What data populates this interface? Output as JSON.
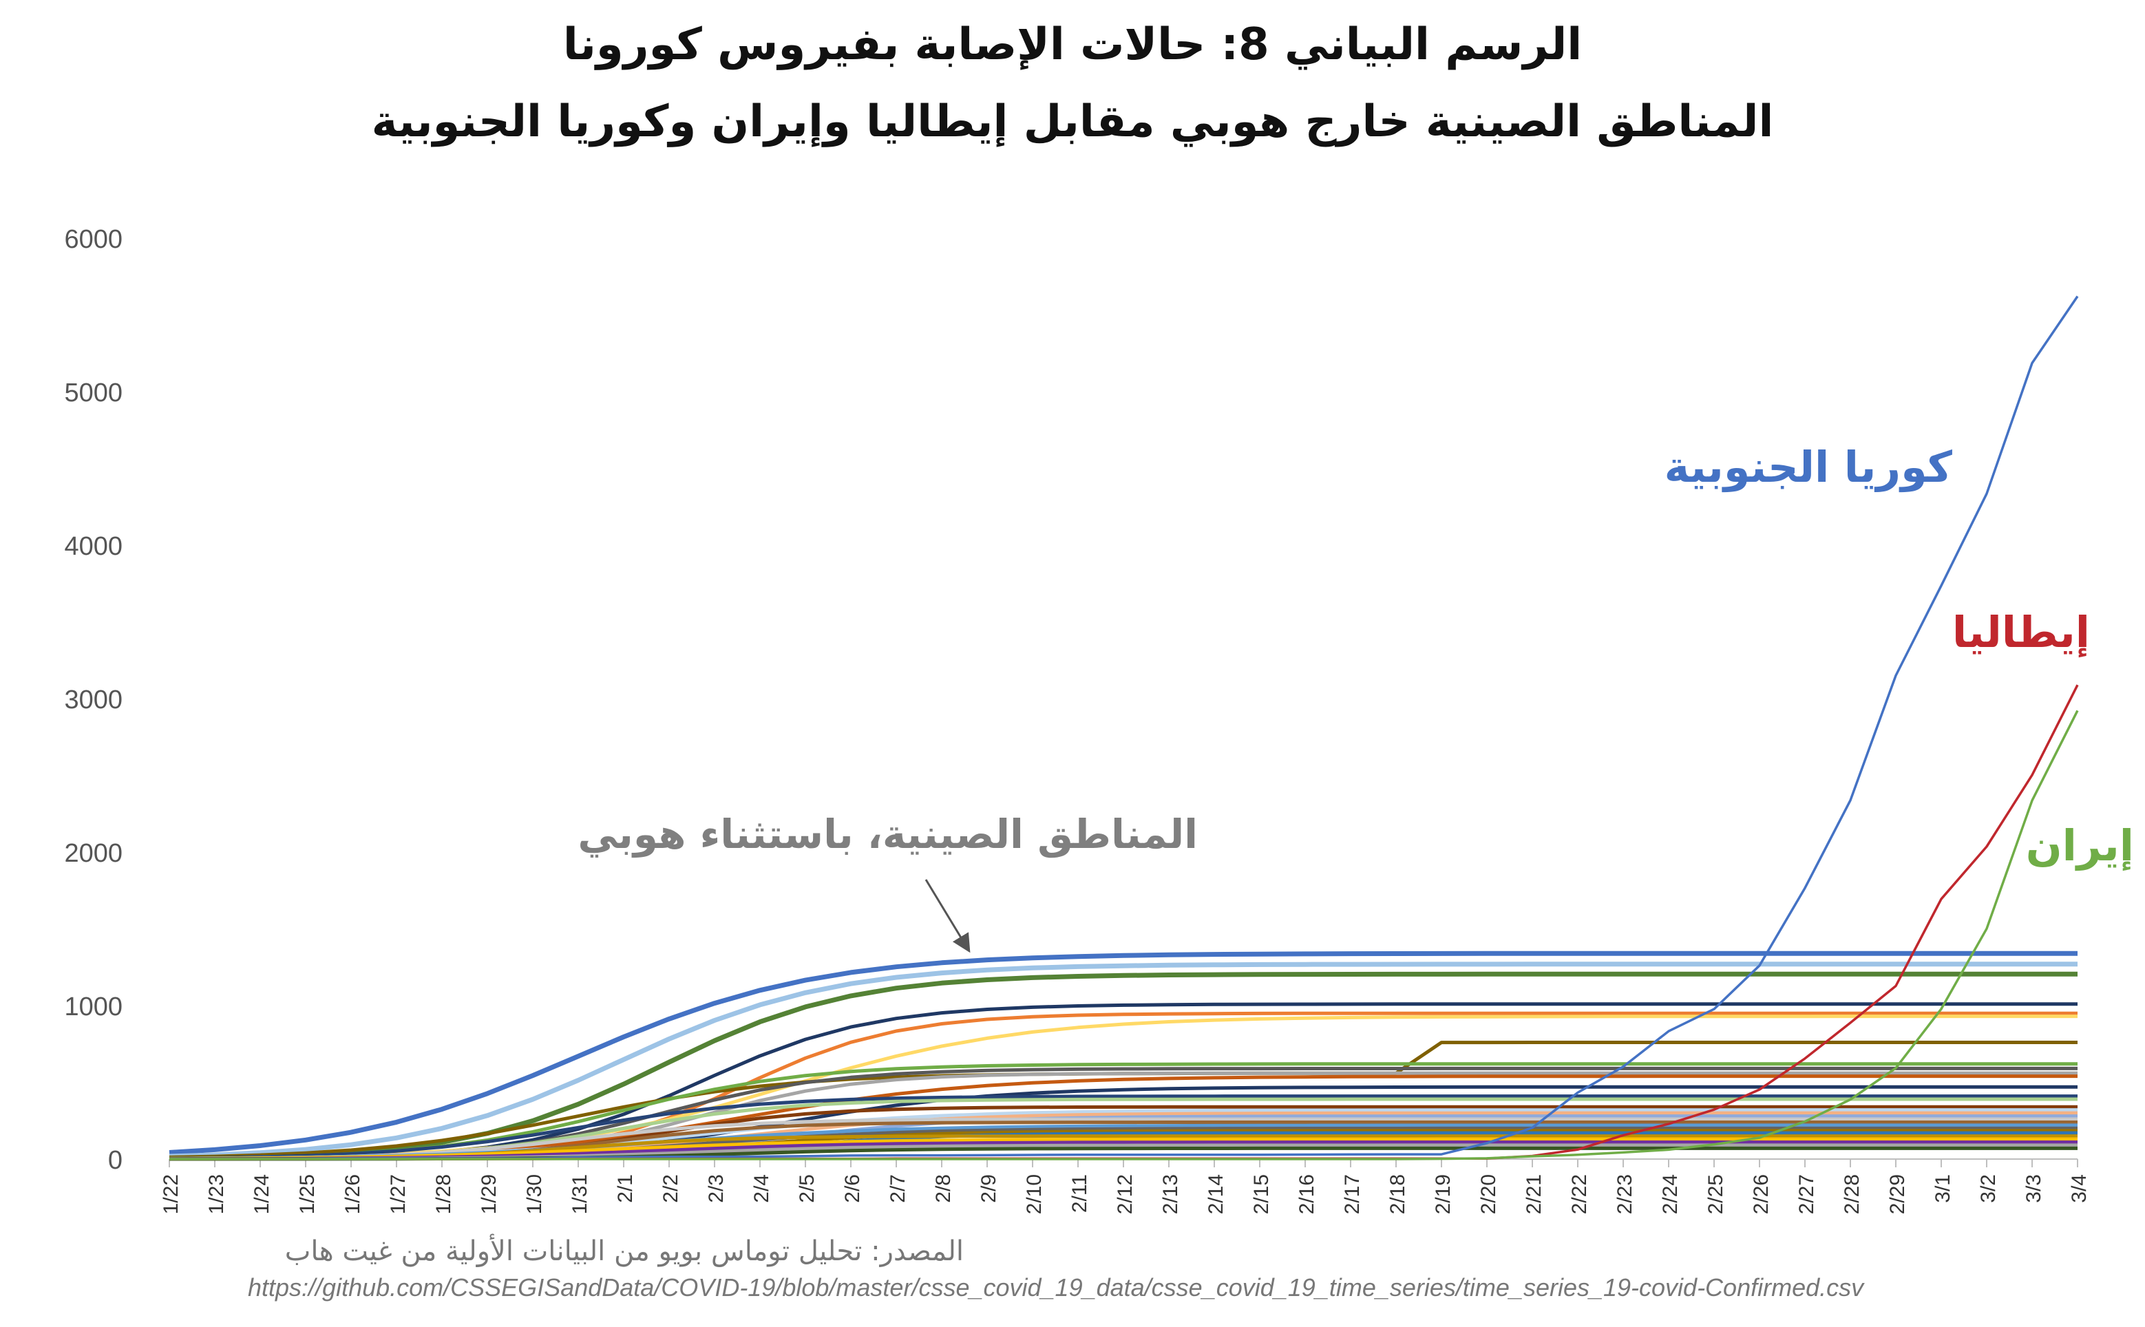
{
  "chart_data": {
    "type": "line",
    "title": "الرسم البياني 8: حالات الإصابة بفيروس كورونا",
    "subtitle": "المناطق الصينية خارج هوبي مقابل إيطاليا وإيران وكوريا الجنوبية",
    "xlabel": "",
    "ylabel": "",
    "ylim": [
      0,
      6000
    ],
    "yticks": [
      "0",
      "1000",
      "2000",
      "3000",
      "4000",
      "5000",
      "6000"
    ],
    "categories": [
      "1/22",
      "1/23",
      "1/24",
      "1/25",
      "1/26",
      "1/27",
      "1/28",
      "1/29",
      "1/30",
      "1/31",
      "2/1",
      "2/2",
      "2/3",
      "2/4",
      "2/5",
      "2/6",
      "2/7",
      "2/8",
      "2/9",
      "2/10",
      "2/11",
      "2/12",
      "2/13",
      "2/14",
      "2/15",
      "2/16",
      "2/17",
      "2/18",
      "2/19",
      "2/20",
      "2/21",
      "2/22",
      "2/23",
      "2/24",
      "2/25",
      "2/26",
      "2/27",
      "2/28",
      "2/29",
      "3/1",
      "3/2",
      "3/3",
      "3/4"
    ],
    "series": [
      {
        "name": "كوريا الجنوبية",
        "color": "#4472c4",
        "values": [
          1,
          1,
          2,
          2,
          3,
          4,
          4,
          4,
          4,
          11,
          12,
          15,
          15,
          16,
          19,
          23,
          24,
          24,
          25,
          27,
          28,
          28,
          28,
          28,
          28,
          29,
          30,
          31,
          31,
          104,
          204,
          433,
          602,
          833,
          977,
          1261,
          1766,
          2337,
          3150,
          3736,
          4335,
          5186,
          5621
        ]
      },
      {
        "name": "إيطاليا",
        "color": "#c0272d",
        "values": [
          0,
          0,
          0,
          0,
          0,
          0,
          0,
          0,
          0,
          2,
          2,
          2,
          2,
          2,
          2,
          2,
          3,
          3,
          3,
          3,
          3,
          3,
          3,
          3,
          3,
          3,
          3,
          3,
          3,
          3,
          20,
          62,
          155,
          229,
          322,
          453,
          655,
          888,
          1128,
          1694,
          2036,
          2502,
          3089
        ]
      },
      {
        "name": "إيران",
        "color": "#70ad47",
        "values": [
          0,
          0,
          0,
          0,
          0,
          0,
          0,
          0,
          0,
          0,
          0,
          0,
          0,
          0,
          0,
          0,
          0,
          0,
          0,
          0,
          0,
          0,
          0,
          0,
          0,
          0,
          0,
          0,
          2,
          5,
          18,
          28,
          43,
          61,
          95,
          139,
          245,
          388,
          593,
          978,
          1501,
          2336,
          2922
        ]
      }
    ],
    "annotations": {
      "korea": "كوريا الجنوبية",
      "italy": "إيطاليا",
      "iran": "إيران",
      "provinces": "المناطق الصينية، باستثناء هوبي"
    }
  },
  "source": "المصدر: تحليل توماس بويو من البيانات الأولية من غيت هاب",
  "source_url": "https://github.com/CSSEGISandData/COVID-19/blob/master/csse_covid_19_data/csse_covid_19_time_series/time_series_19-covid-Confirmed.csv"
}
